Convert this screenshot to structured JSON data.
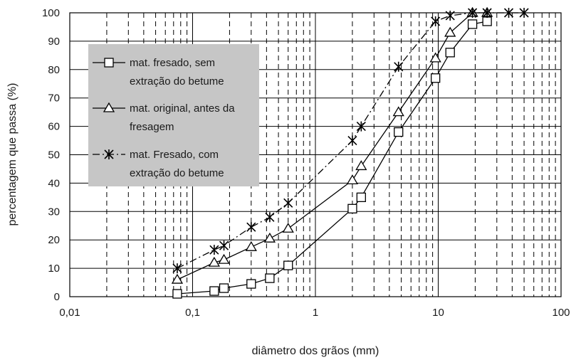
{
  "chart_data": {
    "type": "line",
    "x_scale": "log",
    "xlabel": "diâmetro dos grãos (mm)",
    "ylabel": "percentagem que passa (%)",
    "xlim": [
      0.01,
      100
    ],
    "ylim": [
      0,
      100
    ],
    "x_ticks": [
      0.01,
      0.1,
      1,
      10,
      100
    ],
    "x_tick_labels": [
      "0,01",
      "0,1",
      "1",
      "10",
      "100"
    ],
    "y_ticks": [
      0,
      10,
      20,
      30,
      40,
      50,
      60,
      70,
      80,
      90,
      100
    ],
    "y_tick_labels": [
      "0",
      "10",
      "20",
      "30",
      "40",
      "50",
      "60",
      "70",
      "80",
      "90",
      "100"
    ],
    "grid": true,
    "legend_position": "upper-left",
    "series": [
      {
        "name": "mat. fresado, sem extração do betume",
        "legend_lines": [
          "mat. fresado, sem",
          "extração do betume"
        ],
        "marker": "square",
        "line_style": "solid",
        "x": [
          0.075,
          0.15,
          0.18,
          0.3,
          0.425,
          0.6,
          2.0,
          2.36,
          4.75,
          9.5,
          12.5,
          19.0,
          25.0
        ],
        "y": [
          1,
          2,
          3,
          4.5,
          6.5,
          11,
          31,
          35,
          58,
          77,
          86,
          96,
          97
        ]
      },
      {
        "name": "mat. original, antes da fresagem",
        "legend_lines": [
          "mat. original, antes da",
          "fresagem"
        ],
        "marker": "triangle",
        "line_style": "solid",
        "x": [
          0.075,
          0.15,
          0.18,
          0.3,
          0.425,
          0.6,
          2.0,
          2.36,
          4.75,
          9.5,
          12.5,
          19.0,
          25.0
        ],
        "y": [
          6,
          12,
          13,
          17.5,
          20.5,
          24,
          41,
          46,
          65,
          84,
          93,
          100,
          100
        ]
      },
      {
        "name": "mat. Fresado, com extração do betume",
        "legend_lines": [
          "mat. Fresado, com",
          "extração do betume"
        ],
        "marker": "asterisk",
        "line_style": "dashdot",
        "x": [
          0.075,
          0.15,
          0.18,
          0.3,
          0.425,
          0.6,
          2.0,
          2.36,
          4.75,
          9.5,
          12.5,
          19.0,
          25.0,
          37.5,
          50.0
        ],
        "y": [
          10,
          16.5,
          18,
          24.5,
          28,
          33,
          55,
          60,
          81,
          97,
          99,
          100,
          100,
          100,
          100
        ]
      }
    ]
  }
}
